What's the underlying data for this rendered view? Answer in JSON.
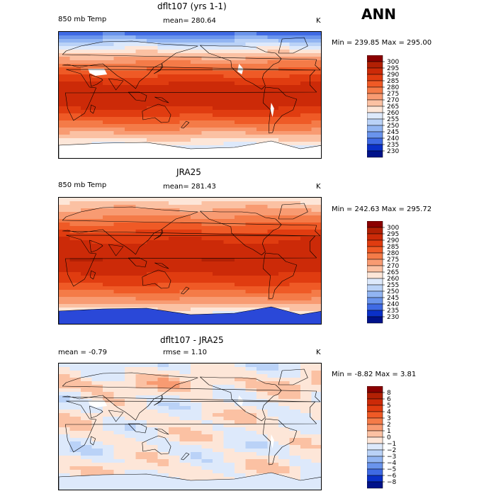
{
  "season": "ANN",
  "panels": [
    {
      "title": "dflt107 (yrs 1-1)",
      "variable": "850 mb Temp",
      "stat_text": "mean=  280.64",
      "units": "K",
      "range_text": "Min = 239.85 Max = 295.00",
      "levels": [
        "300",
        "295",
        "290",
        "285",
        "280",
        "275",
        "270",
        "265",
        "260",
        "255",
        "250",
        "245",
        "240",
        "235",
        "230"
      ],
      "colors": [
        "#8b0000",
        "#b22004",
        "#cc2a08",
        "#e03c10",
        "#ef5a26",
        "#f47b48",
        "#f89b72",
        "#fbc1a3",
        "#fde6d8",
        "#dde9fb",
        "#bad2f7",
        "#92b5f2",
        "#6a94ec",
        "#3f6ae4",
        "#0a30c8",
        "#00128a"
      ],
      "mode": "field",
      "profile": [
        236,
        252,
        266,
        276,
        284,
        291,
        294,
        291,
        285,
        276,
        266,
        256,
        244
      ],
      "land": "#e03c10",
      "missing": "#ffffff"
    },
    {
      "title": "JRA25",
      "variable": "850 mb Temp",
      "stat_text": "mean=  281.43",
      "units": "K",
      "range_text": "Min = 242.63 Max = 295.72",
      "levels": [
        "300",
        "295",
        "290",
        "285",
        "280",
        "275",
        "270",
        "265",
        "260",
        "255",
        "250",
        "245",
        "240",
        "235",
        "230"
      ],
      "colors": [
        "#8b0000",
        "#b22004",
        "#cc2a08",
        "#e03c10",
        "#ef5a26",
        "#f47b48",
        "#f89b72",
        "#fbc1a3",
        "#fde6d8",
        "#dde9fb",
        "#bad2f7",
        "#92b5f2",
        "#6a94ec",
        "#3f6ae4",
        "#0a30c8",
        "#00128a"
      ],
      "mode": "field",
      "profile": [
        262,
        270,
        277,
        284,
        290,
        293,
        294,
        291,
        286,
        279,
        270,
        258,
        246
      ],
      "land": "#e03c10",
      "missing": null
    },
    {
      "title": "dflt107 - JRA25",
      "variable": "",
      "stat_text": "mean =   -0.79",
      "rmse_text": "rmse =    1.10",
      "units": "K",
      "range_text": "Min =  -8.82 Max =   3.81",
      "levels": [
        "8",
        "6",
        "5",
        "4",
        "3",
        "2",
        "1",
        "0",
        "−1",
        "−2",
        "−3",
        "−4",
        "−5",
        "−6",
        "−8"
      ],
      "colors": [
        "#8b0000",
        "#b22004",
        "#cc2a08",
        "#e03c10",
        "#ef5a26",
        "#f47b48",
        "#f89b72",
        "#fbc1a3",
        "#fde6d8",
        "#dde9fb",
        "#bad2f7",
        "#92b5f2",
        "#6a94ec",
        "#3f6ae4",
        "#0a30c8",
        "#00128a"
      ],
      "mode": "diff",
      "profile": [
        -1.5,
        -0.6,
        0.3,
        -0.9,
        -1.2,
        -0.4,
        -0.9,
        -0.6,
        -1.3,
        -0.8,
        -0.5,
        -1.1,
        -1.8
      ],
      "land": "#dde9fb",
      "missing": "#ffffff"
    }
  ]
}
